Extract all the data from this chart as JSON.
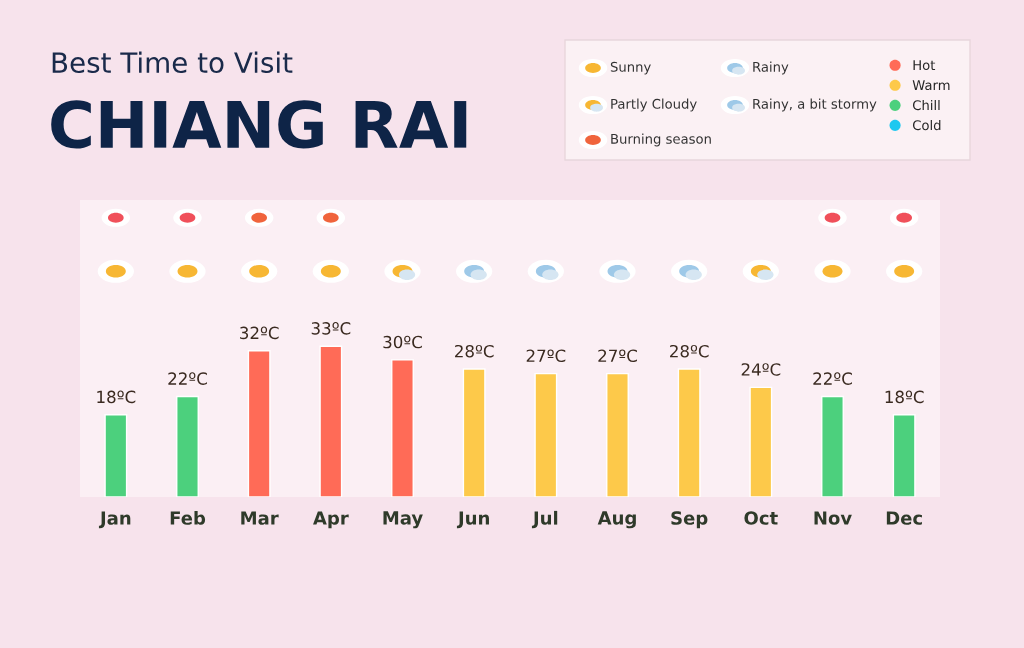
{
  "chart_data": {
    "type": "bar",
    "subtitle": "Best Time to Visit",
    "title": "CHIANG RAI",
    "categories": [
      "Jan",
      "Feb",
      "Mar",
      "Apr",
      "May",
      "Jun",
      "Jul",
      "Aug",
      "Sep",
      "Oct",
      "Nov",
      "Dec"
    ],
    "series": [
      {
        "name": "Hot",
        "color": "#ff6b57",
        "values": [
          null,
          null,
          32,
          33,
          30,
          null,
          null,
          null,
          null,
          null,
          null,
          null
        ],
        "value_labels": [
          null,
          null,
          "32ºC",
          "33ºC",
          "30ºC",
          null,
          null,
          null,
          null,
          null,
          null,
          null
        ]
      },
      {
        "name": "Warm",
        "color": "#fdc94a",
        "values": [
          null,
          null,
          null,
          null,
          null,
          28,
          27,
          27,
          28,
          24,
          null,
          null
        ],
        "value_labels": [
          null,
          null,
          null,
          null,
          null,
          "28ºC",
          "27ºC",
          "27ºC",
          "28ºC",
          "24ºC",
          null,
          null
        ]
      },
      {
        "name": "Chill",
        "color": "#4cd07d",
        "values": [
          18,
          22,
          null,
          null,
          null,
          null,
          null,
          null,
          null,
          null,
          22,
          18
        ],
        "value_labels": [
          "18ºC",
          "22ºC",
          null,
          null,
          null,
          null,
          null,
          null,
          null,
          null,
          "22ºC",
          "18ºC"
        ]
      },
      {
        "name": "Cold",
        "color": "#1ec8f0",
        "values": [
          null,
          null,
          null,
          null,
          null,
          null,
          null,
          null,
          null,
          null,
          null,
          null
        ]
      }
    ],
    "ylim": [
      0,
      65
    ],
    "tick_labels": "x",
    "grid": false,
    "legend": "top right",
    "annotations": [
      "Sunny",
      "Partly Cloudy",
      "Burning season",
      "Rainy",
      "Rainy, a bit stormy"
    ]
  }
}
